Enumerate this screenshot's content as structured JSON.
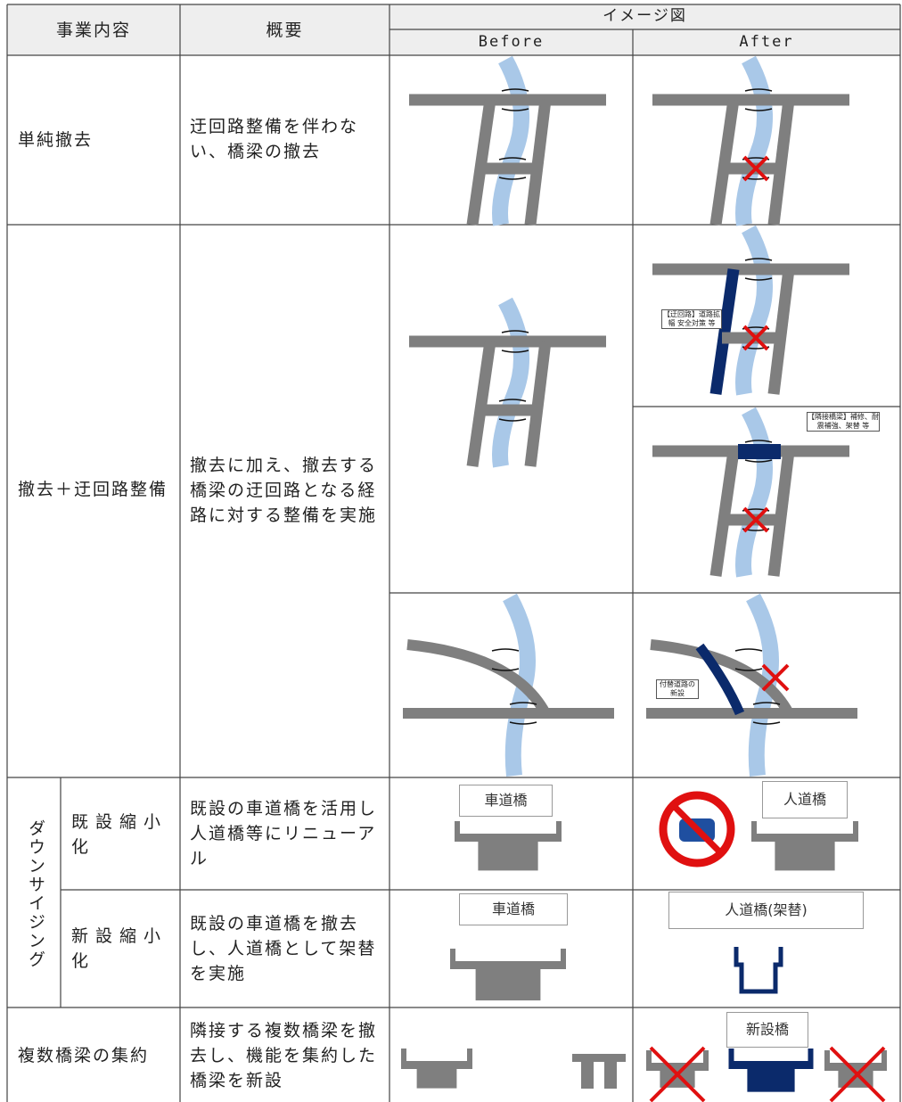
{
  "header": {
    "business": "事業内容",
    "summary": "概要",
    "image": "イメージ図",
    "before": "Before",
    "after": "After"
  },
  "rows": [
    {
      "business": "単純撤去",
      "summary": "迂回路整備を伴わない、橋梁の撤去"
    },
    {
      "business": "撤去＋迂回路整備",
      "summary": "撤去に加え、撤去する橋梁の迂回路となる経路に対する整備を実施",
      "annotations": [
        "【迂回路】道路拡幅 安全対策 等",
        "【隣接橋梁】補修、耐震補強、架替 等",
        "付替道路の新設"
      ]
    },
    {
      "group": "ダウンサイジング",
      "business": "既設縮小化",
      "summary": "既設の車道橋を活用し人道橋等にリニューアル",
      "before_label": "車道橋",
      "after_label": "人道橋"
    },
    {
      "business": "新設縮小化",
      "summary": "既設の車道橋を撤去し、人道橋として架替を実施",
      "before_label": "車道橋",
      "after_label": "人道橋(架替)"
    },
    {
      "business": "複数橋梁の集約",
      "summary": "隣接する複数橋梁を撤去し、機能を集約した橋梁を新設",
      "after_label": "新設橋"
    }
  ]
}
